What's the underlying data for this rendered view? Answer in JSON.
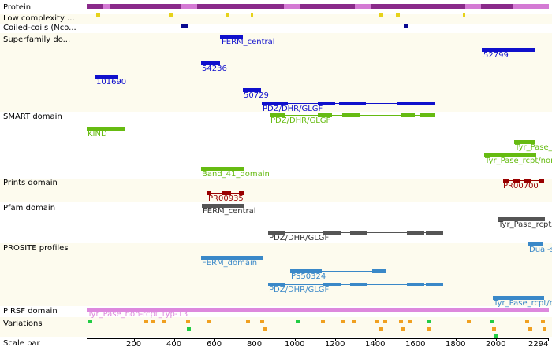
{
  "tracks": {
    "protein": "Protein",
    "low_complexity": "Low complexity ...",
    "coiled_coils": "Coiled-coils (Nco...",
    "superfamily": "Superfamily do...",
    "smart": "SMART domain",
    "prints": "Prints domain",
    "pfam": "Pfam domain",
    "prosite": "PROSITE profiles",
    "pirsf": "PIRSF domain",
    "variations": "Variations",
    "scale": "Scale bar"
  },
  "superfamily": {
    "ferm_central": "FERM_central",
    "f52799": "52799",
    "f101690": "101690",
    "f54236": "54236",
    "f50729": "50729",
    "pdz": "PDZ/DHR/GLGF"
  },
  "smart": {
    "pdz": "PDZ/DHR/GLGF",
    "kind": "KIND",
    "tyr_pase_short": "Tyr_Pase_c",
    "tyr_pase_rcpt": "Tyr_Pase_rcpt/non",
    "band41": "Band_41_domain"
  },
  "prints": {
    "pr00935": "PR00935",
    "pr00700": "PR00700"
  },
  "pfam": {
    "ferm_central": "FERM_central",
    "tyr_pase": "Tyr_Pase_rcpt/no",
    "pdz": "PDZ/DHR/GLGF"
  },
  "prosite": {
    "dual": "Dual-s",
    "ferm": "FERM_domain",
    "ps50324": "PS50324",
    "pdz": "PDZ/DHR/GLGF",
    "tyr_pase": "Tyr_Pase_rcpt/no"
  },
  "pirsf": {
    "label": "Tyr_Pase_non-rcpt_typ-13"
  },
  "scale": {
    "ticks": [
      "200",
      "400",
      "600",
      "800",
      "1000",
      "1200",
      "1400",
      "1600",
      "1800",
      "2000",
      "2294"
    ]
  },
  "colors": {
    "protein_dark": "#8a2a8a",
    "protein_light": "#d47ad4",
    "low_complexity": "#e6d21a",
    "superfamily": "#1010cc",
    "smart": "#66bb11",
    "prints": "#990000",
    "pfam": "#555555",
    "prosite": "#3a88c8",
    "pirsf": "#dd88dd",
    "var_orange": "#f0a020",
    "var_green": "#22cc44"
  }
}
